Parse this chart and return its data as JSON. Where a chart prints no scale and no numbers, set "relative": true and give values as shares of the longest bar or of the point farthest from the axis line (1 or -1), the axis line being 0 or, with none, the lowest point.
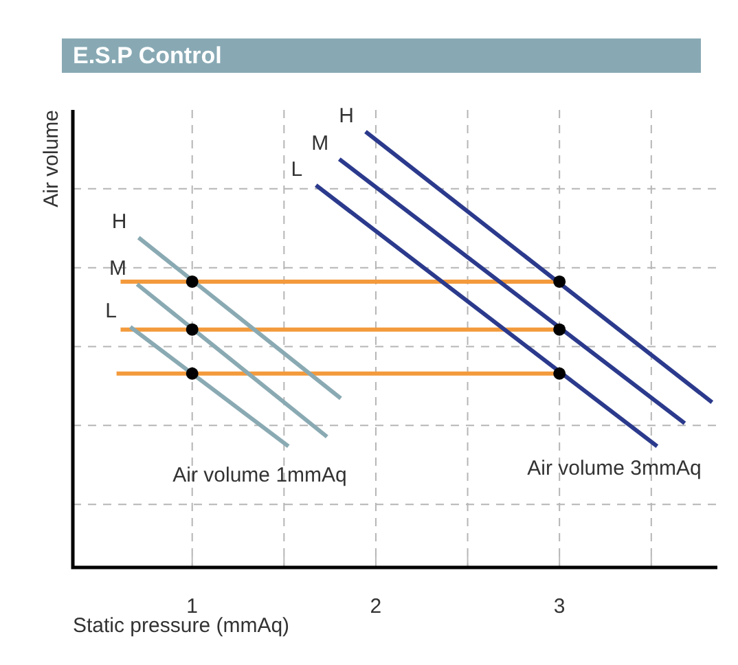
{
  "chart_data": {
    "type": "line",
    "title": "E.S.P Control",
    "xlabel": "Static pressure (mmAq)",
    "ylabel": "Air volume",
    "relative": true,
    "xlim": [
      0.35,
      3.86
    ],
    "xticks": [
      1,
      {
        "value": 1.5,
        "label": null
      },
      2,
      {
        "value": 2.5,
        "label": null
      },
      3,
      {
        "value": 3.5,
        "label": null
      }
    ],
    "grid": true,
    "legend": false,
    "marker": "none",
    "line_style": "solid",
    "series": [
      {
        "name": "H",
        "color": "#8aaab3",
        "x": [
          0.708,
          1.809
        ],
        "values": [
          0.757,
          0.388
        ]
      },
      {
        "name": "M",
        "color": "#8aaab3",
        "x": [
          0.7,
          1.734
        ],
        "values": [
          0.65,
          0.3
        ]
      },
      {
        "name": "L",
        "color": "#8aaab3",
        "x": [
          0.663,
          1.524
        ],
        "values": [
          0.552,
          0.278
        ]
      },
      {
        "name": "H",
        "color": "#2b3a8c",
        "x": [
          1.944,
          3.831
        ],
        "values": [
          1.0,
          0.379
        ]
      },
      {
        "name": "M",
        "color": "#2b3a8c",
        "x": [
          1.801,
          3.682
        ],
        "values": [
          0.937,
          0.331
        ]
      },
      {
        "name": "L",
        "color": "#2b3a8c",
        "x": [
          1.674,
          3.532
        ],
        "values": [
          0.877,
          0.278
        ]
      },
      {
        "color": "#f39a3c",
        "x": [
          0.61,
          3.0
        ],
        "values": [
          0.656,
          0.656
        ]
      },
      {
        "color": "#f39a3c",
        "x": [
          0.61,
          3.0
        ],
        "values": [
          0.546,
          0.546
        ]
      },
      {
        "color": "#f39a3c",
        "x": [
          0.588,
          3.0
        ],
        "values": [
          0.445,
          0.445
        ]
      },
      {
        "type": "scatter",
        "marker": "circle",
        "color": "#000000",
        "x": [
          1,
          1,
          1,
          3,
          3,
          3
        ],
        "values": [
          0.656,
          0.546,
          0.445,
          0.656,
          0.546,
          0.445
        ]
      }
    ],
    "annotations": [
      "Air volume 1mmAq",
      "Air volume 3mmAq"
    ]
  }
}
